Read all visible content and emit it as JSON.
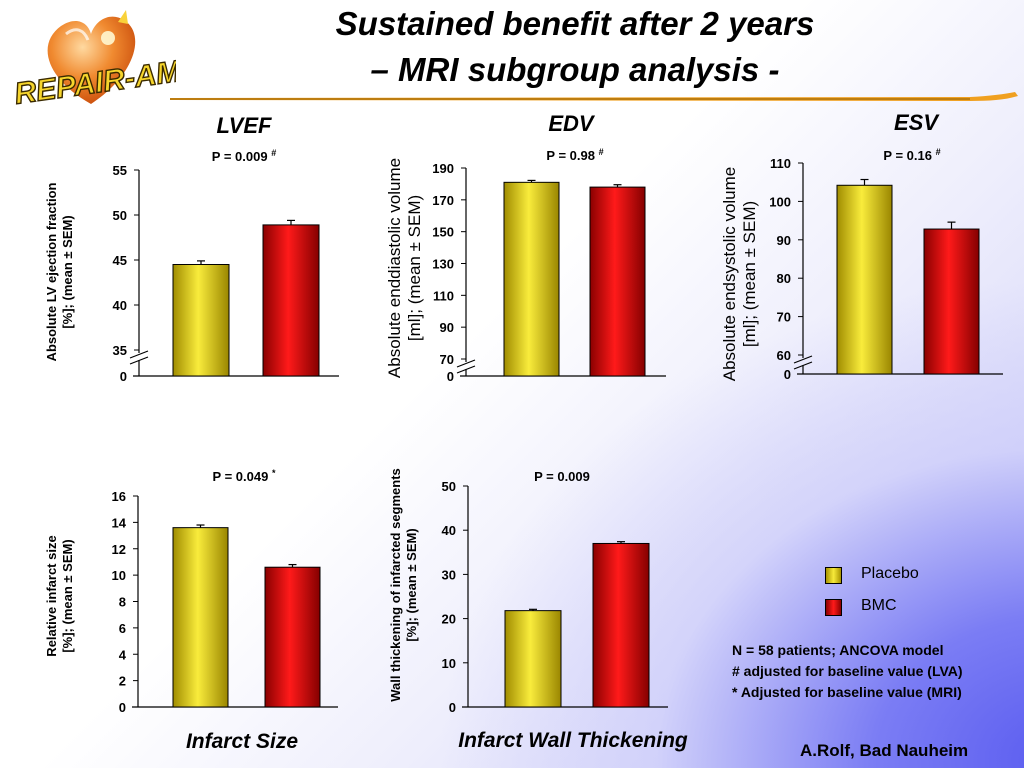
{
  "slide": {
    "title_line1": "Sustained benefit after 2 years",
    "title_line2": "– MRI subgroup analysis -",
    "logo_text": "REPAIR-AMI",
    "legend": [
      {
        "label": "Placebo",
        "color": "#e8d40c"
      },
      {
        "label": "BMC",
        "color": "#e00000"
      }
    ],
    "notes": [
      "N = 58 patients; ANCOVA model",
      "# adjusted for baseline value (LVA)",
      "* Adjusted for baseline value (MRI)"
    ],
    "credit": "A.Rolf, Bad Nauheim"
  },
  "colors": {
    "placebo": "#e8d40c",
    "bmc": "#e00000",
    "logo_orange": "#f07a1a"
  },
  "chart_data": [
    {
      "type": "bar",
      "title": "LVEF",
      "pvalue": "P = 0.009",
      "pmark": "#",
      "ylabel": [
        "Absolute LV ejection fraction",
        "[%]; (mean ± SEM)"
      ],
      "ylabel_bold": true,
      "categories": [
        "Placebo",
        "BMC"
      ],
      "values": [
        44.5,
        48.9
      ],
      "errors": [
        0.4,
        0.5
      ],
      "ylim": [
        0,
        55
      ],
      "axis_break": true,
      "yticks": [
        "0",
        "35",
        "40",
        "45",
        "50",
        "55"
      ]
    },
    {
      "type": "bar",
      "title": "EDV",
      "pvalue": "P = 0.98",
      "pmark": "#",
      "ylabel": [
        "Absolute enddiastolic volume",
        "[ml]; (mean ± SEM)"
      ],
      "ylabel_bold": false,
      "categories": [
        "Placebo",
        "BMC"
      ],
      "values": [
        181,
        178
      ],
      "errors": [
        1.2,
        1.5
      ],
      "ylim": [
        0,
        190
      ],
      "axis_break": true,
      "yticks": [
        "0",
        "70",
        "90",
        "110",
        "130",
        "150",
        "170",
        "190"
      ]
    },
    {
      "type": "bar",
      "title": "ESV",
      "pvalue": "P = 0.16",
      "pmark": "#",
      "ylabel": [
        "Absolute endsystolic volume",
        "[ml]; (mean ± SEM)"
      ],
      "ylabel_bold": false,
      "categories": [
        "Placebo",
        "BMC"
      ],
      "values": [
        104.2,
        92.8
      ],
      "errors": [
        1.5,
        1.8
      ],
      "ylim": [
        0,
        110
      ],
      "axis_break": true,
      "yticks": [
        "0",
        "60",
        "70",
        "80",
        "90",
        "100",
        "110"
      ]
    },
    {
      "type": "bar",
      "title": "Infarct Size",
      "pvalue": "P = 0.049",
      "pmark": "*",
      "ylabel": [
        "Relative infarct size",
        "[%]; (mean ± SEM)"
      ],
      "ylabel_bold": true,
      "categories": [
        "Placebo",
        "BMC"
      ],
      "values": [
        13.6,
        10.6
      ],
      "errors": [
        0.2,
        0.2
      ],
      "ylim": [
        0,
        16
      ],
      "axis_break": false,
      "yticks": [
        "0",
        "2",
        "4",
        "6",
        "8",
        "10",
        "12",
        "14",
        "16"
      ]
    },
    {
      "type": "bar",
      "title": "Infarct Wall Thickening",
      "pvalue": "P = 0.009",
      "pmark": "",
      "ylabel": [
        "Wall thickening of infarcted segments",
        "[%]; (mean ± SEM)"
      ],
      "ylabel_bold": true,
      "categories": [
        "Placebo",
        "BMC"
      ],
      "values": [
        21.8,
        37.0
      ],
      "errors": [
        0.3,
        0.4
      ],
      "ylim": [
        0,
        50
      ],
      "axis_break": false,
      "yticks": [
        "0",
        "10",
        "20",
        "30",
        "40",
        "50"
      ]
    }
  ]
}
